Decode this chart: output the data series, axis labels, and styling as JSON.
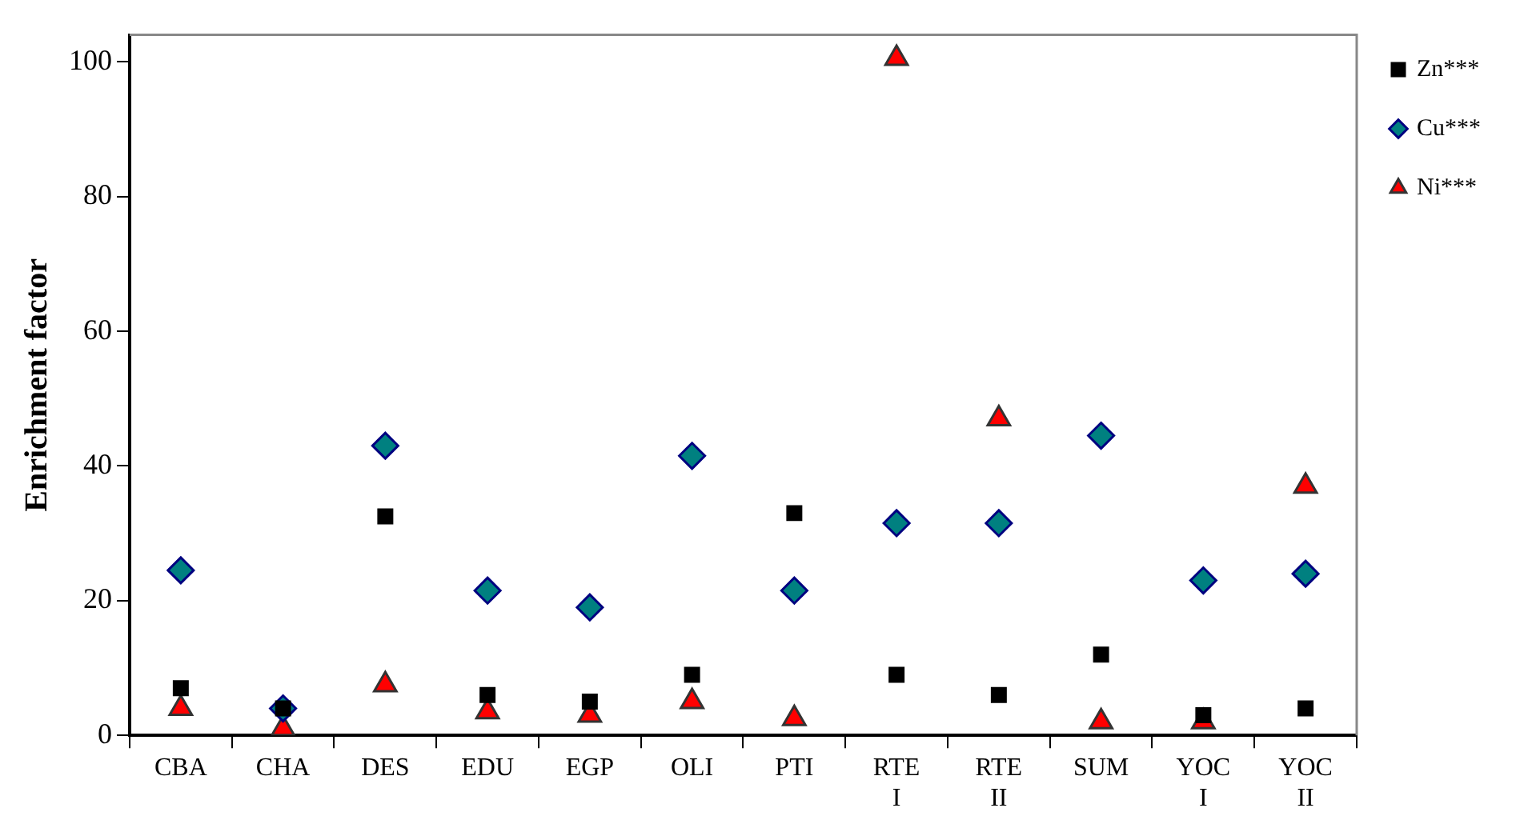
{
  "chart_data": {
    "type": "scatter",
    "ylabel": "Enrichment factor",
    "categories": [
      "CBA",
      "CHA",
      "DES",
      "EDU",
      "EGP",
      "OLI",
      "PTI",
      "RTE I",
      "RTE II",
      "SUM",
      "YOC I",
      "YOC II"
    ],
    "series": [
      {
        "name": "Zn***",
        "color": "#000000",
        "marker": "square",
        "values": [
          7,
          4,
          32.5,
          6,
          5,
          9,
          33,
          9,
          6,
          12,
          3,
          4
        ]
      },
      {
        "name": "Cu***",
        "color": "#008080",
        "marker": "diamond",
        "values": [
          24.5,
          4,
          43,
          21.5,
          19,
          41.5,
          21.5,
          31.5,
          31.5,
          44.5,
          23,
          24
        ]
      },
      {
        "name": "Ni***",
        "color": "#ff0000",
        "marker": "triangle",
        "values": [
          4,
          1,
          7.5,
          3.5,
          3,
          5,
          2.5,
          100.5,
          47,
          2,
          2,
          37
        ]
      }
    ],
    "ylim": [
      0,
      104
    ],
    "yticks": [
      0,
      20,
      40,
      60,
      80,
      100
    ],
    "grid": false,
    "legend": "top right"
  }
}
